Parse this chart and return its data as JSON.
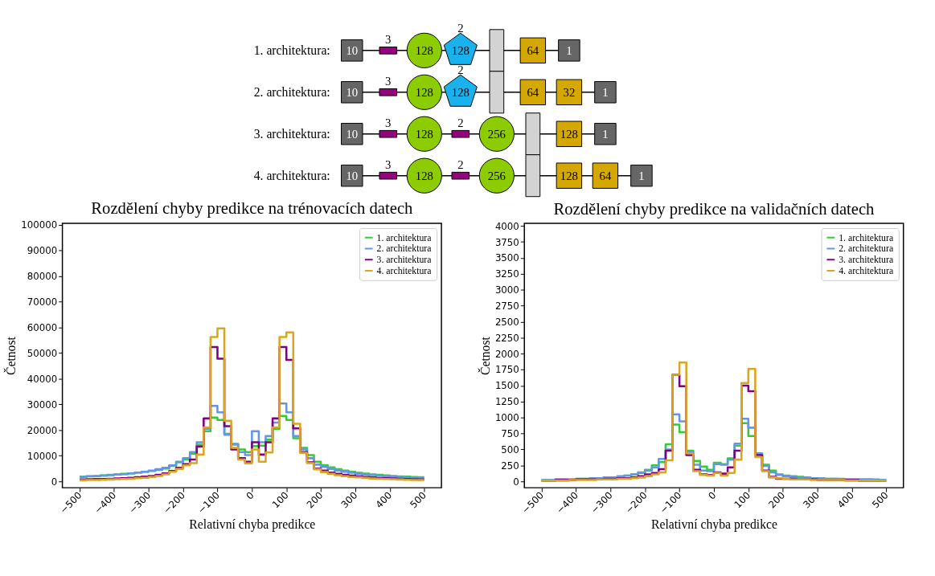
{
  "chart_data": [
    {
      "type": "other",
      "y_categories": [
        "1. architektura:",
        "2. architektura:",
        "3. architektura:",
        "4. architektura:"
      ],
      "cell_labels": [
        [
          [
            "10",
            null
          ],
          [
            null,
            "3"
          ],
          [
            "128",
            null
          ],
          [
            "128",
            "2"
          ],
          [
            null,
            null
          ],
          [
            "64",
            null
          ],
          [
            "1",
            null
          ]
        ],
        [
          [
            "10",
            null
          ],
          [
            null,
            "3"
          ],
          [
            "128",
            null
          ],
          [
            "128",
            "2"
          ],
          [
            null,
            null
          ],
          [
            "64",
            null
          ],
          [
            "32",
            null
          ],
          [
            "1",
            null
          ]
        ],
        [
          [
            "10",
            null
          ],
          [
            null,
            "3"
          ],
          [
            "128",
            null
          ],
          [
            null,
            "2"
          ],
          [
            "256",
            null
          ],
          [
            null,
            null
          ],
          [
            "128",
            null
          ],
          [
            "1",
            null
          ]
        ],
        [
          [
            "10",
            null
          ],
          [
            null,
            "3"
          ],
          [
            "128",
            null
          ],
          [
            null,
            "2"
          ],
          [
            "256",
            null
          ],
          [
            null,
            null
          ],
          [
            "128",
            null
          ],
          [
            "64",
            null
          ],
          [
            "1",
            null
          ]
        ]
      ],
      "colors": [
        [
          "#666666",
          "#990080",
          "#8ccc00",
          "#1ab2ec",
          "#d3d3d3",
          "#d4a800",
          "#666666"
        ],
        [
          "#666666",
          "#990080",
          "#8ccc00",
          "#1ab2ec",
          "#d3d3d3",
          "#d4a800",
          "#d4a800",
          "#666666"
        ],
        [
          "#666666",
          "#990080",
          "#8ccc00",
          "#990080",
          "#8ccc00",
          "#d3d3d3",
          "#d4a800",
          "#666666"
        ],
        [
          "#666666",
          "#990080",
          "#8ccc00",
          "#990080",
          "#8ccc00",
          "#d3d3d3",
          "#d4a800",
          "#d4a800",
          "#666666"
        ]
      ]
    },
    {
      "type": "histogram",
      "title": "Rozdělení chyby predikce na trénovacích datech",
      "xlabel": "Relativní chyba predikce",
      "ylabel": "Četnost",
      "legend": "top right",
      "bins": [
        -500,
        -480,
        -460,
        -440,
        -420,
        -400,
        -380,
        -360,
        -340,
        -320,
        -300,
        -280,
        -260,
        -240,
        -220,
        -200,
        -180,
        -160,
        -140,
        -120,
        -100,
        -80,
        -60,
        -40,
        -20,
        0,
        20,
        40,
        60,
        80,
        100,
        120,
        140,
        160,
        180,
        200,
        220,
        240,
        260,
        280,
        300,
        320,
        340,
        360,
        380,
        400,
        420,
        440,
        460,
        480,
        500
      ],
      "xlim": [
        -550,
        550
      ],
      "xticks": [
        {
          "value": -500,
          "label": "−500"
        },
        {
          "value": -400,
          "label": "−400"
        },
        {
          "value": -300,
          "label": "−300"
        },
        {
          "value": -200,
          "label": "−200"
        },
        {
          "value": -100,
          "label": "−100"
        },
        0,
        100,
        200,
        300,
        400,
        500
      ],
      "ylim": [
        -2500,
        100500
      ],
      "yticks": [
        0,
        10000,
        20000,
        30000,
        40000,
        50000,
        60000,
        70000,
        80000,
        90000,
        100000
      ],
      "series": [
        {
          "name": "1. architektura",
          "color": "#32cd32",
          "values": [
            1800,
            2000,
            2100,
            2300,
            2500,
            2700,
            2900,
            3100,
            3400,
            3700,
            4000,
            4400,
            5000,
            6000,
            7600,
            8500,
            10800,
            14300,
            19500,
            24800,
            23900,
            18500,
            14600,
            12400,
            11400,
            13700,
            13900,
            16200,
            20500,
            25500,
            23900,
            16800,
            13000,
            10200,
            7600,
            6300,
            5400,
            4700,
            4200,
            3700,
            3300,
            3000,
            2700,
            2500,
            2300,
            2100,
            1900,
            1800,
            1700,
            1600
          ]
        },
        {
          "name": "2. architektura",
          "color": "#6495ed",
          "values": [
            1700,
            1900,
            2000,
            2200,
            2400,
            2600,
            2800,
            3100,
            3400,
            3700,
            4200,
            4700,
            5300,
            6200,
            7400,
            9000,
            11400,
            15200,
            20500,
            29400,
            26900,
            18100,
            14300,
            11400,
            10200,
            19500,
            15200,
            17600,
            22900,
            30300,
            26900,
            17600,
            12400,
            9000,
            6500,
            5600,
            4800,
            4200,
            3700,
            3300,
            2900,
            2600,
            2400,
            2200,
            2000,
            1800,
            1700,
            1600,
            1500,
            1400
          ]
        },
        {
          "name": "3. architektura",
          "color": "#800080",
          "values": [
            700,
            800,
            900,
            900,
            1000,
            1100,
            1200,
            1400,
            1600,
            1800,
            2100,
            2500,
            3100,
            4000,
            5300,
            6700,
            8500,
            13600,
            24500,
            52300,
            47800,
            21500,
            12400,
            9000,
            7600,
            15200,
            10400,
            15200,
            24500,
            52300,
            47300,
            20600,
            11400,
            7400,
            5000,
            4200,
            3400,
            2900,
            2500,
            2200,
            1900,
            1700,
            1500,
            1300,
            1200,
            1100,
            1000,
            900,
            800,
            700
          ]
        },
        {
          "name": "4. architektura",
          "color": "#daa520",
          "values": [
            400,
            500,
            500,
            600,
            700,
            800,
            900,
            1000,
            1200,
            1400,
            1700,
            2100,
            2700,
            3700,
            4800,
            6200,
            7100,
            10400,
            21000,
            56200,
            59600,
            23600,
            13000,
            8500,
            7000,
            12400,
            7600,
            11200,
            21000,
            56200,
            58000,
            22400,
            11100,
            7100,
            4700,
            3600,
            2900,
            2400,
            2000,
            1700,
            1500,
            1300,
            1100,
            1000,
            900,
            800,
            700,
            600,
            500,
            500
          ]
        }
      ]
    },
    {
      "type": "histogram",
      "title": "Rozdělení chyby predikce na validačních datech",
      "xlabel": "Relativní chyba predikce",
      "ylabel": "Četnost",
      "legend": "top right",
      "bins": [
        -500,
        -480,
        -460,
        -440,
        -420,
        -400,
        -380,
        -360,
        -340,
        -320,
        -300,
        -280,
        -260,
        -240,
        -220,
        -200,
        -180,
        -160,
        -140,
        -120,
        -100,
        -80,
        -60,
        -40,
        -20,
        0,
        20,
        40,
        60,
        80,
        100,
        120,
        140,
        160,
        180,
        200,
        220,
        240,
        260,
        280,
        300,
        320,
        340,
        360,
        380,
        400,
        420,
        440,
        460,
        480,
        500
      ],
      "xlim": [
        -550,
        550
      ],
      "xticks": [
        {
          "value": -500,
          "label": "−500"
        },
        {
          "value": -400,
          "label": "−400"
        },
        {
          "value": -300,
          "label": "−300"
        },
        {
          "value": -200,
          "label": "−200"
        },
        {
          "value": -100,
          "label": "−100"
        },
        0,
        100,
        200,
        300,
        400,
        500
      ],
      "ylim": [
        -100,
        4040
      ],
      "yticks": [
        0,
        250,
        500,
        750,
        1000,
        1250,
        1500,
        1750,
        2000,
        2250,
        2500,
        2750,
        3000,
        3250,
        3500,
        3750,
        4000
      ],
      "series": [
        {
          "name": "1. architektura",
          "color": "#32cd32",
          "values": [
            20,
            20,
            30,
            30,
            30,
            40,
            40,
            50,
            50,
            60,
            60,
            70,
            90,
            110,
            140,
            180,
            250,
            300,
            580,
            890,
            770,
            480,
            320,
            230,
            180,
            290,
            270,
            360,
            560,
            910,
            710,
            440,
            260,
            170,
            110,
            90,
            80,
            70,
            60,
            50,
            50,
            40,
            40,
            40,
            30,
            30,
            30,
            30,
            30,
            20
          ]
        },
        {
          "name": "2. architektura",
          "color": "#6495ed",
          "values": [
            20,
            20,
            30,
            30,
            30,
            40,
            40,
            50,
            50,
            60,
            60,
            80,
            90,
            110,
            130,
            170,
            220,
            350,
            500,
            1050,
            940,
            460,
            260,
            170,
            160,
            270,
            260,
            340,
            590,
            980,
            840,
            430,
            240,
            140,
            100,
            80,
            70,
            60,
            60,
            50,
            50,
            40,
            40,
            30,
            30,
            30,
            30,
            30,
            20,
            20
          ]
        },
        {
          "name": "3. architektura",
          "color": "#800080",
          "values": [
            10,
            10,
            20,
            20,
            20,
            30,
            30,
            30,
            30,
            40,
            40,
            50,
            50,
            60,
            80,
            110,
            130,
            190,
            480,
            1670,
            1490,
            410,
            180,
            110,
            100,
            140,
            120,
            220,
            480,
            1500,
            1410,
            410,
            170,
            70,
            40,
            40,
            40,
            30,
            30,
            30,
            20,
            20,
            20,
            20,
            20,
            20,
            10,
            10,
            10,
            10
          ]
        },
        {
          "name": "4. architektura",
          "color": "#daa520",
          "values": [
            10,
            10,
            10,
            10,
            20,
            20,
            20,
            20,
            30,
            30,
            30,
            40,
            40,
            50,
            60,
            80,
            110,
            140,
            330,
            1670,
            1860,
            440,
            160,
            100,
            90,
            130,
            90,
            130,
            340,
            1540,
            1760,
            380,
            160,
            60,
            50,
            40,
            30,
            30,
            30,
            20,
            20,
            20,
            20,
            20,
            10,
            10,
            10,
            10,
            10,
            10
          ]
        }
      ]
    }
  ]
}
